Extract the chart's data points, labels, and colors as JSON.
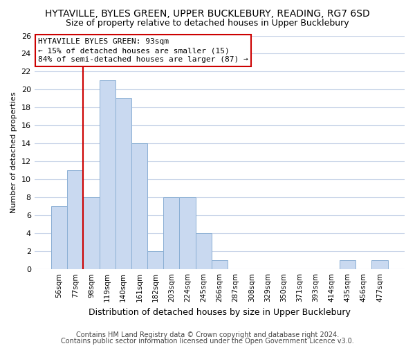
{
  "title": "HYTAVILLE, BYLES GREEN, UPPER BUCKLEBURY, READING, RG7 6SD",
  "subtitle": "Size of property relative to detached houses in Upper Bucklebury",
  "xlabel": "Distribution of detached houses by size in Upper Bucklebury",
  "ylabel": "Number of detached properties",
  "bin_labels": [
    "56sqm",
    "77sqm",
    "98sqm",
    "119sqm",
    "140sqm",
    "161sqm",
    "182sqm",
    "203sqm",
    "224sqm",
    "245sqm",
    "266sqm",
    "287sqm",
    "308sqm",
    "329sqm",
    "350sqm",
    "371sqm",
    "393sqm",
    "414sqm",
    "435sqm",
    "456sqm",
    "477sqm"
  ],
  "bar_values": [
    7,
    11,
    8,
    21,
    19,
    14,
    2,
    8,
    8,
    4,
    1,
    0,
    0,
    0,
    0,
    0,
    0,
    0,
    1,
    0,
    1
  ],
  "bar_color": "#c9d9f0",
  "bar_edge_color": "#8bafd4",
  "vline_color": "#cc0000",
  "vline_pos": 1.5,
  "ylim_max": 26,
  "yticks": [
    0,
    2,
    4,
    6,
    8,
    10,
    12,
    14,
    16,
    18,
    20,
    22,
    24,
    26
  ],
  "annotation_title": "HYTAVILLE BYLES GREEN: 93sqm",
  "annotation_line1": "← 15% of detached houses are smaller (15)",
  "annotation_line2": "84% of semi-detached houses are larger (87) →",
  "footer1": "Contains HM Land Registry data © Crown copyright and database right 2024.",
  "footer2": "Contains public sector information licensed under the Open Government Licence v3.0.",
  "background_color": "#ffffff",
  "grid_color": "#c8d4e8",
  "title_fontsize": 10,
  "subtitle_fontsize": 9,
  "xlabel_fontsize": 9,
  "ylabel_fontsize": 8,
  "annotation_fontsize": 8,
  "footer_fontsize": 7
}
